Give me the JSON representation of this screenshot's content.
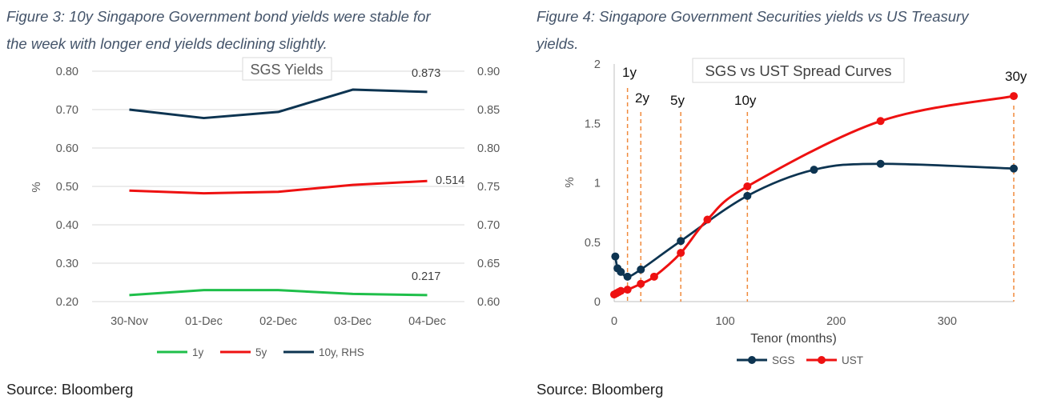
{
  "figures": [
    {
      "caption_line1": "Figure 3: 10y Singapore Government bond yields were stable for",
      "caption_line2": "the week with longer end yields declining slightly.",
      "source": "Source: Bloomberg"
    },
    {
      "caption_line1": "Figure 4: Singapore Government Securities yields vs US Treasury",
      "caption_line2": "yields.",
      "source": "Source: Bloomberg"
    }
  ],
  "colors": {
    "green": "#1fbf4a",
    "red": "#ee1111",
    "navy": "#0d3451",
    "orange": "#f08a3c",
    "grid": "#d9d9d9",
    "axis_text": "#595959"
  },
  "chart_data": [
    {
      "type": "line",
      "title": "SGS Yields",
      "categories": [
        "30-Nov",
        "01-Dec",
        "02-Dec",
        "03-Dec",
        "04-Dec"
      ],
      "ylabel": "%",
      "ylim": [
        0.2,
        0.8
      ],
      "yticks": [
        "0.20",
        "0.30",
        "0.40",
        "0.50",
        "0.60",
        "0.70",
        "0.80"
      ],
      "y2lim": [
        0.6,
        0.9
      ],
      "y2ticks": [
        "0.60",
        "0.65",
        "0.70",
        "0.75",
        "0.80",
        "0.85",
        "0.90"
      ],
      "grid": true,
      "legend": "bottom",
      "series": [
        {
          "name": "1y",
          "axis": "left",
          "color": "green",
          "values": [
            0.217,
            0.23,
            0.23,
            0.22,
            0.217
          ],
          "end_label": "0.217"
        },
        {
          "name": "5y",
          "axis": "left",
          "color": "red",
          "values": [
            0.489,
            0.482,
            0.486,
            0.504,
            0.514
          ],
          "end_label": "0.514"
        },
        {
          "name": "10y, RHS",
          "axis": "right",
          "color": "navy",
          "values": [
            0.85,
            0.839,
            0.847,
            0.876,
            0.873
          ],
          "end_label": "0.873"
        }
      ]
    },
    {
      "type": "line",
      "title": "SGS vs UST Spread Curves",
      "xlabel": "Tenor (months)",
      "ylabel": "%",
      "xlim": [
        0,
        360
      ],
      "xticks": [
        "0",
        "100",
        "200",
        "300"
      ],
      "ylim": [
        0,
        2
      ],
      "yticks": [
        "0",
        "0.5",
        "1",
        "1.5",
        "2"
      ],
      "grid": false,
      "legend": "bottom",
      "tenor_markers": [
        {
          "label": "1y",
          "x": 12
        },
        {
          "label": "2y",
          "x": 24
        },
        {
          "label": "5y",
          "x": 60
        },
        {
          "label": "10y",
          "x": 120
        },
        {
          "label": "30y",
          "x": 360
        }
      ],
      "series": [
        {
          "name": "SGS",
          "color": "navy",
          "x": [
            1,
            3,
            6,
            12,
            24,
            60,
            120,
            180,
            240,
            360
          ],
          "y": [
            0.38,
            0.28,
            0.25,
            0.21,
            0.27,
            0.51,
            0.89,
            1.11,
            1.16,
            1.12
          ]
        },
        {
          "name": "UST",
          "color": "red",
          "x": [
            0,
            2,
            4,
            6,
            12,
            24,
            36,
            60,
            84,
            120,
            240,
            360
          ],
          "y": [
            0.06,
            0.07,
            0.08,
            0.09,
            0.1,
            0.15,
            0.21,
            0.41,
            0.69,
            0.97,
            1.52,
            1.73
          ]
        }
      ]
    }
  ]
}
